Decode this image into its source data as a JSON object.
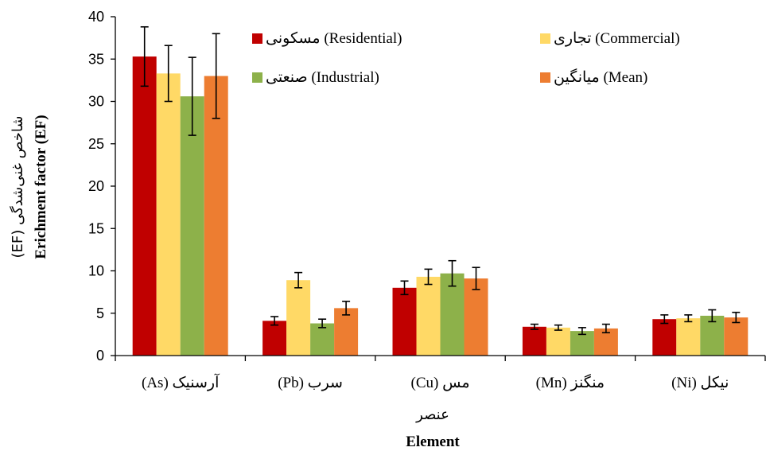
{
  "chart_data": {
    "type": "bar",
    "categories": [
      "آرسنیک (As)",
      "سرب (Pb)",
      "مس (Cu)",
      "منگنز (Mn)",
      "نیکل (Ni)"
    ],
    "series": [
      {
        "name": "مسکونی (Residential)",
        "color": "#C00000",
        "values": [
          35.3,
          4.1,
          8.0,
          3.4,
          4.3
        ],
        "errors": [
          3.5,
          0.5,
          0.8,
          0.3,
          0.5
        ]
      },
      {
        "name": "تجاری (Commercial)",
        "color": "#FFD966",
        "values": [
          33.3,
          8.9,
          9.3,
          3.3,
          4.4
        ],
        "errors": [
          3.3,
          0.9,
          0.9,
          0.3,
          0.4
        ]
      },
      {
        "name": "صنعتی (Industrial)",
        "color": "#8DB14A",
        "values": [
          30.6,
          3.8,
          9.7,
          2.9,
          4.7
        ],
        "errors": [
          4.6,
          0.5,
          1.5,
          0.4,
          0.7
        ]
      },
      {
        "name": "میانگین (Mean)",
        "color": "#ED7D31",
        "values": [
          33.0,
          5.6,
          9.1,
          3.2,
          4.5
        ],
        "errors": [
          5.0,
          0.8,
          1.3,
          0.5,
          0.6
        ]
      }
    ],
    "xlabel_fa": "عنصر",
    "xlabel_en": "Element",
    "ylabel_fa": "شاخص غنی‌شدگی (EF)",
    "ylabel_en": "Erichment factor (EF)",
    "ylim": [
      0,
      40
    ],
    "yticks": [
      0,
      5,
      10,
      15,
      20,
      25,
      30,
      35,
      40
    ],
    "grid": false,
    "legend_position": "top-right, two columns"
  }
}
